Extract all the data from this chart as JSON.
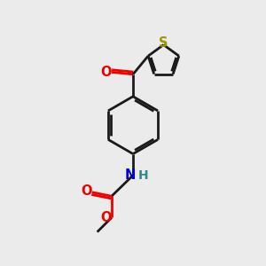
{
  "bg_color": "#ebebeb",
  "bond_color": "#1a1a1a",
  "S_color": "#999900",
  "O_color": "#ee0000",
  "N_color": "#0000cc",
  "H_color": "#338888",
  "line_width": 2.0,
  "figsize": [
    3.0,
    3.0
  ],
  "dpi": 100,
  "xlim": [
    0,
    10
  ],
  "ylim": [
    0,
    10
  ],
  "bx": 5.0,
  "by": 5.3,
  "br": 1.1
}
